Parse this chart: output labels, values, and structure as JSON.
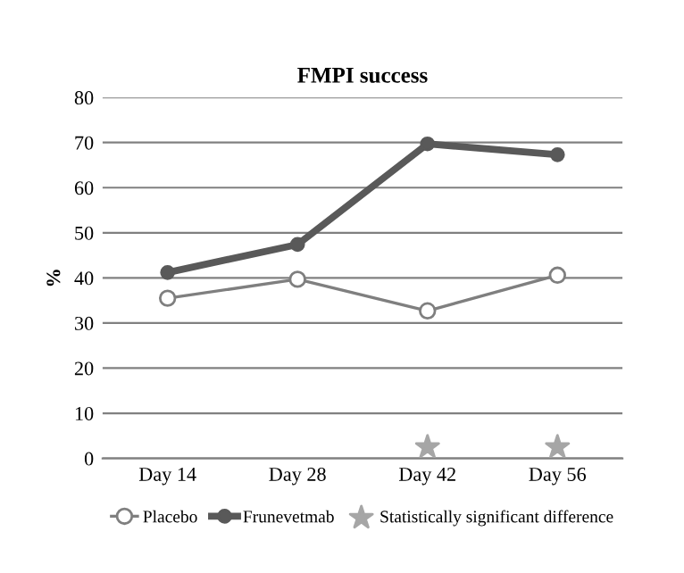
{
  "chart_data": {
    "type": "line",
    "title": "FMPI success",
    "ylabel": "%",
    "categories": [
      "Day 14",
      "Day 28",
      "Day 42",
      "Day 56"
    ],
    "series": [
      {
        "name": "Placebo",
        "color": "#7f7f7f",
        "values": [
          35.5,
          39.7,
          32.7,
          40.6
        ],
        "marker": "circle"
      },
      {
        "name": "Frunevetmab",
        "color": "#595959",
        "values": [
          41.2,
          47.4,
          69.7,
          67.3
        ],
        "marker": "circle"
      },
      {
        "name": "Statistically significant difference",
        "type": "scatter",
        "color": "#a6a6a6",
        "x": [
          "Day 42",
          "Day 56"
        ],
        "values": [
          2.5,
          2.5
        ],
        "marker": "star"
      }
    ],
    "ylim": [
      0,
      80
    ],
    "yticks": [
      0,
      10,
      20,
      30,
      40,
      50,
      60,
      70,
      80
    ],
    "grid": "y",
    "legend": "bottom"
  }
}
